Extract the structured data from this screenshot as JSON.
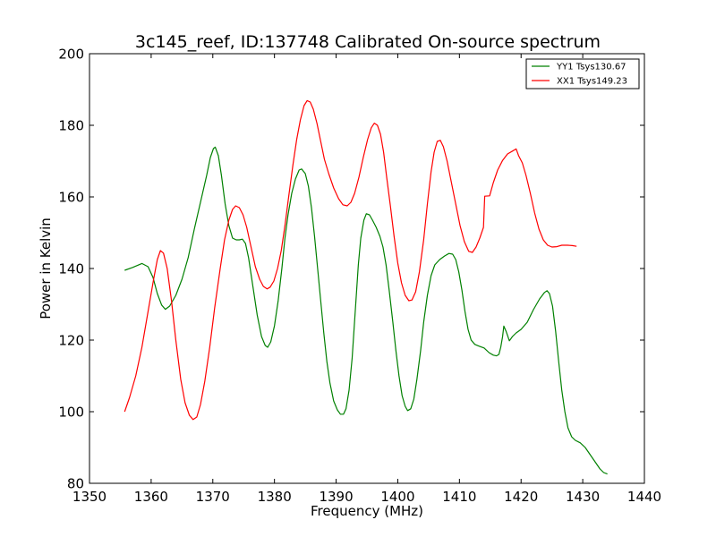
{
  "chart_data": {
    "type": "line",
    "title": "3c145_reef, ID:137748 Calibrated On-source spectrum",
    "xlabel": "Frequency (MHz)",
    "ylabel": "Power in Kelvin",
    "xlim": [
      1350,
      1440
    ],
    "ylim": [
      80,
      200
    ],
    "xticks": [
      1350,
      1360,
      1370,
      1380,
      1390,
      1400,
      1410,
      1420,
      1430,
      1440
    ],
    "yticks": [
      80,
      100,
      120,
      140,
      160,
      180,
      200
    ],
    "legend_placement": "top-right",
    "grid": false,
    "series": [
      {
        "name": "YY1 Tsys130.67",
        "color": "#008000",
        "points": [
          [
            1355.7,
            139.5
          ],
          [
            1357,
            140.3
          ],
          [
            1358.5,
            141.4
          ],
          [
            1359.5,
            140.5
          ],
          [
            1360.3,
            137.5
          ],
          [
            1361,
            133
          ],
          [
            1361.7,
            129.8
          ],
          [
            1362.3,
            128.6
          ],
          [
            1363,
            129.5
          ],
          [
            1364,
            132.5
          ],
          [
            1365,
            137
          ],
          [
            1366,
            143
          ],
          [
            1367,
            151
          ],
          [
            1368,
            158.5
          ],
          [
            1369,
            166
          ],
          [
            1369.6,
            171
          ],
          [
            1370.1,
            173.5
          ],
          [
            1370.4,
            173.9
          ],
          [
            1370.9,
            171.5
          ],
          [
            1371.4,
            166
          ],
          [
            1372,
            158
          ],
          [
            1372.6,
            152
          ],
          [
            1373.2,
            148.5
          ],
          [
            1373.8,
            148
          ],
          [
            1374.3,
            148
          ],
          [
            1374.8,
            148.2
          ],
          [
            1375.3,
            147
          ],
          [
            1375.8,
            143
          ],
          [
            1376.5,
            135
          ],
          [
            1377.2,
            127
          ],
          [
            1377.9,
            121
          ],
          [
            1378.5,
            118.5
          ],
          [
            1378.9,
            118
          ],
          [
            1379.4,
            119.5
          ],
          [
            1380,
            124
          ],
          [
            1380.6,
            131
          ],
          [
            1381.2,
            140
          ],
          [
            1381.7,
            148.5
          ],
          [
            1382.2,
            155
          ],
          [
            1382.8,
            161
          ],
          [
            1383.4,
            165
          ],
          [
            1384,
            167.5
          ],
          [
            1384.4,
            167.8
          ],
          [
            1385,
            166.5
          ],
          [
            1385.5,
            163
          ],
          [
            1386,
            157
          ],
          [
            1386.5,
            149
          ],
          [
            1387,
            140
          ],
          [
            1387.5,
            131
          ],
          [
            1388,
            122
          ],
          [
            1388.5,
            114
          ],
          [
            1389,
            108
          ],
          [
            1389.6,
            103
          ],
          [
            1390.2,
            100.5
          ],
          [
            1390.7,
            99.3
          ],
          [
            1391.2,
            99.3
          ],
          [
            1391.6,
            100.8
          ],
          [
            1392.1,
            106
          ],
          [
            1392.6,
            115
          ],
          [
            1393.1,
            128
          ],
          [
            1393.6,
            141
          ],
          [
            1394,
            148.5
          ],
          [
            1394.5,
            153.5
          ],
          [
            1394.9,
            155.3
          ],
          [
            1395.4,
            155
          ],
          [
            1395.9,
            153.5
          ],
          [
            1396.5,
            151.5
          ],
          [
            1397.1,
            149
          ],
          [
            1397.6,
            146
          ],
          [
            1398.1,
            141
          ],
          [
            1398.6,
            134
          ],
          [
            1399.2,
            125
          ],
          [
            1399.7,
            117
          ],
          [
            1400.2,
            110
          ],
          [
            1400.7,
            104.5
          ],
          [
            1401.2,
            101.5
          ],
          [
            1401.6,
            100.3
          ],
          [
            1402.1,
            100.8
          ],
          [
            1402.6,
            103.5
          ],
          [
            1403.1,
            109
          ],
          [
            1403.7,
            117
          ],
          [
            1404.2,
            125
          ],
          [
            1404.8,
            132.5
          ],
          [
            1405.4,
            138
          ],
          [
            1406,
            141
          ],
          [
            1406.8,
            142.5
          ],
          [
            1407.6,
            143.5
          ],
          [
            1408.3,
            144.2
          ],
          [
            1408.9,
            144
          ],
          [
            1409.4,
            142.5
          ],
          [
            1409.9,
            139
          ],
          [
            1410.4,
            134
          ],
          [
            1410.9,
            128
          ],
          [
            1411.4,
            123
          ],
          [
            1411.9,
            120
          ],
          [
            1412.5,
            118.8
          ],
          [
            1413.2,
            118.3
          ],
          [
            1414,
            117.8
          ],
          [
            1414.8,
            116.5
          ],
          [
            1415.5,
            115.8
          ],
          [
            1416,
            115.6
          ],
          [
            1416.4,
            116
          ],
          [
            1416.7,
            118
          ],
          [
            1417,
            121
          ],
          [
            1417.2,
            123.9
          ],
          [
            1417.6,
            122.3
          ],
          [
            1418.1,
            119.8
          ],
          [
            1418.6,
            121
          ],
          [
            1419.2,
            122
          ],
          [
            1420,
            123
          ],
          [
            1421,
            125
          ],
          [
            1422,
            128.5
          ],
          [
            1423,
            131.5
          ],
          [
            1423.8,
            133.3
          ],
          [
            1424.2,
            133.8
          ],
          [
            1424.6,
            133
          ],
          [
            1425.1,
            129.5
          ],
          [
            1425.6,
            122.5
          ],
          [
            1426.1,
            114
          ],
          [
            1426.6,
            106
          ],
          [
            1427.1,
            100
          ],
          [
            1427.6,
            95.5
          ],
          [
            1428.2,
            93
          ],
          [
            1428.8,
            92
          ],
          [
            1429.6,
            91.3
          ],
          [
            1430.4,
            90
          ],
          [
            1431.2,
            88
          ],
          [
            1432,
            86
          ],
          [
            1432.8,
            84
          ],
          [
            1433.4,
            83
          ],
          [
            1434,
            82.6
          ]
        ]
      },
      {
        "name": "XX1 Tsys149.23",
        "color": "#ff0000",
        "points": [
          [
            1355.7,
            100
          ],
          [
            1356.5,
            104
          ],
          [
            1357.5,
            110
          ],
          [
            1358.5,
            118
          ],
          [
            1359.5,
            128
          ],
          [
            1360.4,
            137
          ],
          [
            1361,
            142.5
          ],
          [
            1361.5,
            145
          ],
          [
            1362,
            144.3
          ],
          [
            1362.6,
            140
          ],
          [
            1363.3,
            131
          ],
          [
            1364,
            120
          ],
          [
            1364.8,
            109
          ],
          [
            1365.5,
            102.5
          ],
          [
            1366.2,
            99
          ],
          [
            1366.8,
            97.8
          ],
          [
            1367.4,
            98.5
          ],
          [
            1368,
            102
          ],
          [
            1368.7,
            108.5
          ],
          [
            1369.5,
            118
          ],
          [
            1370.3,
            129
          ],
          [
            1371.2,
            140
          ],
          [
            1371.9,
            148
          ],
          [
            1372.6,
            153.5
          ],
          [
            1373.2,
            156.5
          ],
          [
            1373.7,
            157.5
          ],
          [
            1374.3,
            157
          ],
          [
            1374.9,
            155
          ],
          [
            1375.5,
            151.5
          ],
          [
            1376.2,
            146
          ],
          [
            1376.9,
            140.5
          ],
          [
            1377.6,
            137
          ],
          [
            1378.2,
            135
          ],
          [
            1378.8,
            134.3
          ],
          [
            1379.3,
            134.8
          ],
          [
            1379.9,
            136.5
          ],
          [
            1380.5,
            140
          ],
          [
            1381.1,
            145
          ],
          [
            1381.7,
            152
          ],
          [
            1382.3,
            160
          ],
          [
            1383,
            169
          ],
          [
            1383.6,
            176
          ],
          [
            1384.2,
            181.5
          ],
          [
            1384.8,
            185.5
          ],
          [
            1385.3,
            186.9
          ],
          [
            1385.8,
            186.5
          ],
          [
            1386.3,
            184.5
          ],
          [
            1386.9,
            180.5
          ],
          [
            1387.5,
            175.5
          ],
          [
            1388.1,
            170.5
          ],
          [
            1388.8,
            166.5
          ],
          [
            1389.6,
            162.5
          ],
          [
            1390.4,
            159.5
          ],
          [
            1391.1,
            157.8
          ],
          [
            1391.8,
            157.5
          ],
          [
            1392.4,
            158.5
          ],
          [
            1393,
            161
          ],
          [
            1393.7,
            165.5
          ],
          [
            1394.4,
            171
          ],
          [
            1395.1,
            176
          ],
          [
            1395.7,
            179.3
          ],
          [
            1396.2,
            180.6
          ],
          [
            1396.7,
            180
          ],
          [
            1397.2,
            177.5
          ],
          [
            1397.7,
            172.5
          ],
          [
            1398.2,
            165.5
          ],
          [
            1398.8,
            157.5
          ],
          [
            1399.4,
            149
          ],
          [
            1400,
            141.5
          ],
          [
            1400.6,
            136
          ],
          [
            1401.2,
            132.5
          ],
          [
            1401.8,
            131
          ],
          [
            1402.3,
            131.2
          ],
          [
            1402.9,
            133.5
          ],
          [
            1403.5,
            139
          ],
          [
            1404.2,
            148
          ],
          [
            1404.8,
            158
          ],
          [
            1405.4,
            167
          ],
          [
            1405.9,
            172.5
          ],
          [
            1406.4,
            175.5
          ],
          [
            1406.9,
            175.8
          ],
          [
            1407.4,
            174
          ],
          [
            1408,
            170
          ],
          [
            1408.7,
            164
          ],
          [
            1409.4,
            158
          ],
          [
            1410.1,
            152
          ],
          [
            1410.8,
            147.5
          ],
          [
            1411.5,
            144.8
          ],
          [
            1412.1,
            144.5
          ],
          [
            1412.7,
            146
          ],
          [
            1413.3,
            148.5
          ],
          [
            1413.9,
            151.5
          ],
          [
            1414.1,
            160.2
          ],
          [
            1414.9,
            160.3
          ],
          [
            1415.5,
            164
          ],
          [
            1416.2,
            167.5
          ],
          [
            1417,
            170.2
          ],
          [
            1417.8,
            172
          ],
          [
            1418.6,
            172.8
          ],
          [
            1419.2,
            173.4
          ],
          [
            1419.6,
            171.5
          ],
          [
            1420.2,
            169.5
          ],
          [
            1420.8,
            166
          ],
          [
            1421.5,
            161
          ],
          [
            1422.2,
            155.5
          ],
          [
            1422.9,
            151
          ],
          [
            1423.6,
            148
          ],
          [
            1424.3,
            146.5
          ],
          [
            1425,
            146
          ],
          [
            1425.8,
            146.1
          ],
          [
            1426.6,
            146.5
          ],
          [
            1427.5,
            146.5
          ],
          [
            1428.3,
            146.4
          ],
          [
            1429,
            146.2
          ]
        ]
      }
    ]
  }
}
